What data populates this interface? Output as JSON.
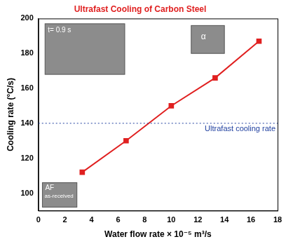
{
  "chart_data": {
    "type": "line",
    "title": "Ultrafast Cooling of Carbon Steel",
    "x_label": "Water flow rate × 10⁻⁵ m³/s",
    "y_label": "Cooling rate (°C/s)",
    "x": [
      3.3,
      6.6,
      10,
      13.3,
      16.6
    ],
    "series": [
      {
        "name": "Cooling rate",
        "color": "#e02020",
        "marker": "square",
        "line_style": "solid",
        "values": [
          112,
          130,
          150,
          166,
          187
        ]
      }
    ],
    "xlim": [
      0,
      18
    ],
    "xticks": [
      0,
      2,
      4,
      6,
      8,
      10,
      12,
      14,
      16,
      18
    ],
    "ylim": [
      90,
      200
    ],
    "yticks": [
      100,
      120,
      140,
      160,
      180,
      200
    ],
    "grid": false,
    "reference_line": {
      "y": 140,
      "label": "Ultrafast cooling rate",
      "color": "#1f3f9f",
      "line_style": "dotted"
    },
    "annotations": [
      "t= 0.9 s",
      "AF",
      "as-received",
      "α"
    ]
  }
}
